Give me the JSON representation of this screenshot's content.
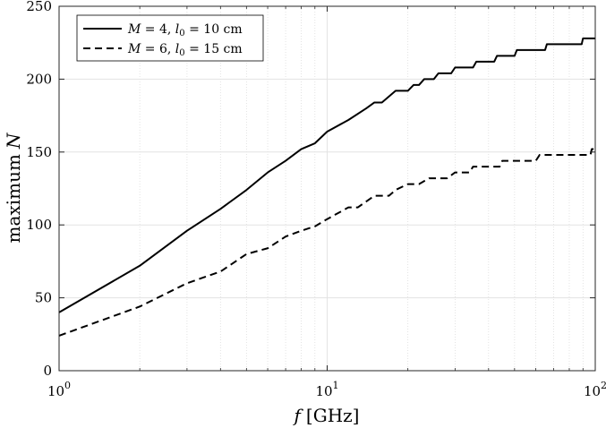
{
  "chart_data": {
    "type": "line",
    "x_scale": "log",
    "xlim": [
      1,
      100
    ],
    "ylim": [
      0,
      250
    ],
    "grid": true,
    "xlabel_var": "f",
    "xlabel_unit": "[GHz]",
    "ylabel_text": "maximum",
    "ylabel_var": "N",
    "x_ticks": [
      {
        "value": 1,
        "base": "10",
        "exp": "0"
      },
      {
        "value": 10,
        "base": "10",
        "exp": "1"
      },
      {
        "value": 100,
        "base": "10",
        "exp": "2"
      }
    ],
    "y_ticks": [
      {
        "value": 0,
        "label": "0"
      },
      {
        "value": 50,
        "label": "50"
      },
      {
        "value": 100,
        "label": "100"
      },
      {
        "value": 150,
        "label": "150"
      },
      {
        "value": 200,
        "label": "200"
      },
      {
        "value": 250,
        "label": "250"
      }
    ],
    "legend_position": "top-left",
    "series": [
      {
        "name": "M = 4, l0 = 10 cm",
        "legend_parts": [
          "M",
          " = 4, ",
          "l",
          "0",
          " = 10 cm"
        ],
        "color": "#000000",
        "style": "solid",
        "points": [
          [
            1,
            40
          ],
          [
            2,
            72
          ],
          [
            3,
            96
          ],
          [
            4,
            111
          ],
          [
            5,
            124
          ],
          [
            6,
            136
          ],
          [
            7,
            144
          ],
          [
            8,
            152
          ],
          [
            9,
            156
          ],
          [
            10,
            164
          ],
          [
            12,
            172
          ],
          [
            14,
            180
          ],
          [
            15,
            184
          ],
          [
            16,
            184
          ],
          [
            18,
            192
          ],
          [
            20,
            192
          ],
          [
            21,
            196
          ],
          [
            22,
            196
          ],
          [
            23,
            200
          ],
          [
            25,
            200
          ],
          [
            26,
            204
          ],
          [
            29,
            204
          ],
          [
            30,
            208
          ],
          [
            35,
            208
          ],
          [
            36,
            212
          ],
          [
            42,
            212
          ],
          [
            43,
            216
          ],
          [
            50,
            216
          ],
          [
            51,
            220
          ],
          [
            65,
            220
          ],
          [
            66,
            224
          ],
          [
            89,
            224
          ],
          [
            90,
            228
          ],
          [
            100,
            228
          ]
        ]
      },
      {
        "name": "M = 6, l0 = 15 cm",
        "legend_parts": [
          "M",
          " = 6, ",
          "l",
          "0",
          " = 15 cm"
        ],
        "color": "#000000",
        "style": "dashed",
        "points": [
          [
            1,
            24
          ],
          [
            2,
            44
          ],
          [
            3,
            60
          ],
          [
            4,
            68
          ],
          [
            5,
            80
          ],
          [
            6,
            84
          ],
          [
            7,
            92
          ],
          [
            8,
            96
          ],
          [
            9,
            99
          ],
          [
            10,
            104
          ],
          [
            12,
            112
          ],
          [
            13,
            112
          ],
          [
            15,
            120
          ],
          [
            17,
            120
          ],
          [
            18,
            124
          ],
          [
            20,
            128
          ],
          [
            22,
            128
          ],
          [
            24,
            132
          ],
          [
            26,
            132
          ],
          [
            28,
            132
          ],
          [
            30,
            136
          ],
          [
            34,
            136
          ],
          [
            35,
            140
          ],
          [
            44,
            140
          ],
          [
            45,
            144
          ],
          [
            60,
            144
          ],
          [
            62,
            148
          ],
          [
            96,
            148
          ],
          [
            97,
            152
          ],
          [
            100,
            152
          ]
        ]
      }
    ]
  }
}
